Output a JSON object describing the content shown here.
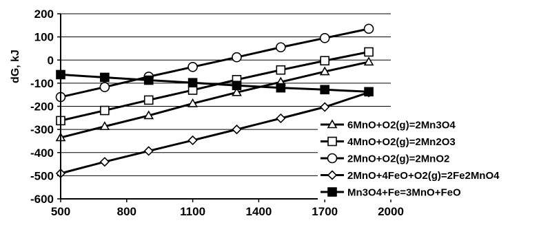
{
  "chart_data": {
    "type": "line",
    "title": "",
    "xlabel": "",
    "ylabel": "dG, kJ",
    "xlim": [
      500,
      2000
    ],
    "ylim": [
      -600,
      200
    ],
    "xticks": [
      "500",
      "800",
      "1100",
      "1400",
      "1700",
      "2000"
    ],
    "yticks": [
      "200",
      "100",
      "0",
      "-100",
      "-200",
      "-300",
      "-400",
      "-500",
      "-600"
    ],
    "x": [
      500,
      700,
      900,
      1100,
      1300,
      1500,
      1700,
      1900
    ],
    "grid": "horizontal",
    "legend_position": "right",
    "series": [
      {
        "name": "6MnO+O2(g)=2Mn3O4",
        "marker": "triangle-open",
        "values": [
          -335,
          -287,
          -240,
          -188,
          -140,
          -95,
          -50,
          -8
        ]
      },
      {
        "name": "4MnO+O2(g)=2Mn2O3",
        "marker": "square-open",
        "values": [
          -262,
          -218,
          -173,
          -130,
          -85,
          -43,
          -3,
          35
        ]
      },
      {
        "name": "2MnO+O2(g)=2MnO2",
        "marker": "circle-open",
        "values": [
          -160,
          -117,
          -72,
          -30,
          12,
          55,
          95,
          135
        ]
      },
      {
        "name": "2MnO+4FeO+O2(g)=2Fe2MnO4",
        "marker": "diamond-open",
        "values": [
          -490,
          -440,
          -393,
          -347,
          -300,
          -252,
          -203,
          -140
        ]
      },
      {
        "name": "Mn3O4+Fe=3MnO+FeO",
        "marker": "square-filled",
        "values": [
          -63,
          -75,
          -87,
          -98,
          -110,
          -120,
          -128,
          -137
        ]
      }
    ]
  }
}
